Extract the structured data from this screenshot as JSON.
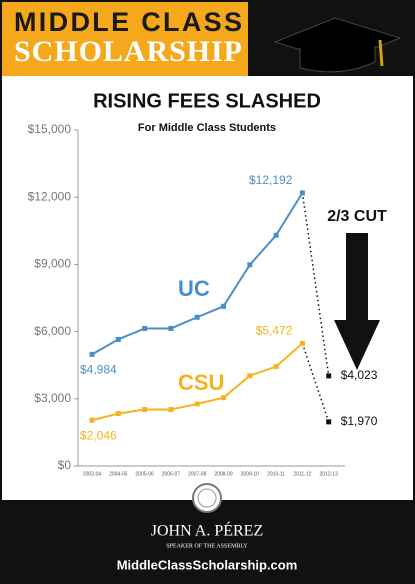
{
  "header": {
    "line1": "MIDDLE CLASS",
    "line2": "SCHOLARSHIP"
  },
  "chart_data": {
    "type": "line",
    "title": "RISING FEES SLASHED",
    "subtitle": "For Middle Class Students",
    "annotation": "2/3 CUT",
    "categories": [
      "2003-04",
      "2004-05",
      "2005-06",
      "2006-07",
      "2007-08",
      "2008-09",
      "2009-10",
      "2010-11",
      "2011-12",
      "2012-13"
    ],
    "series": [
      {
        "name": "UC",
        "color": "#4a8fc9",
        "values": [
          4984,
          5650,
          6140,
          6140,
          6640,
          7130,
          8980,
          10300,
          12192,
          4023
        ],
        "value_labels": [
          "$4,984",
          null,
          null,
          null,
          null,
          null,
          null,
          null,
          "$12,192",
          "$4,023"
        ]
      },
      {
        "name": "CSU",
        "color": "#f5b21c",
        "values": [
          2046,
          2340,
          2520,
          2520,
          2770,
          3050,
          4030,
          4440,
          5472,
          1970
        ],
        "value_labels": [
          "$2,046",
          null,
          null,
          null,
          null,
          null,
          null,
          null,
          "$5,472",
          "$1,970"
        ]
      }
    ],
    "ylim": [
      0,
      15000
    ],
    "yticks": [
      {
        "value": 0,
        "label": "$0"
      },
      {
        "value": 3000,
        "label": "$3,000"
      },
      {
        "value": 6000,
        "label": "$6,000"
      },
      {
        "value": 9000,
        "label": "$9,000"
      },
      {
        "value": 12000,
        "label": "$12,000"
      },
      {
        "value": 15000,
        "label": "$15,000"
      }
    ],
    "grid": false
  },
  "footer": {
    "name": "JOHN A. PÉREZ",
    "role": "SPEAKER OF THE ASSEMBLY",
    "url": "MiddleClassScholarship.com"
  }
}
